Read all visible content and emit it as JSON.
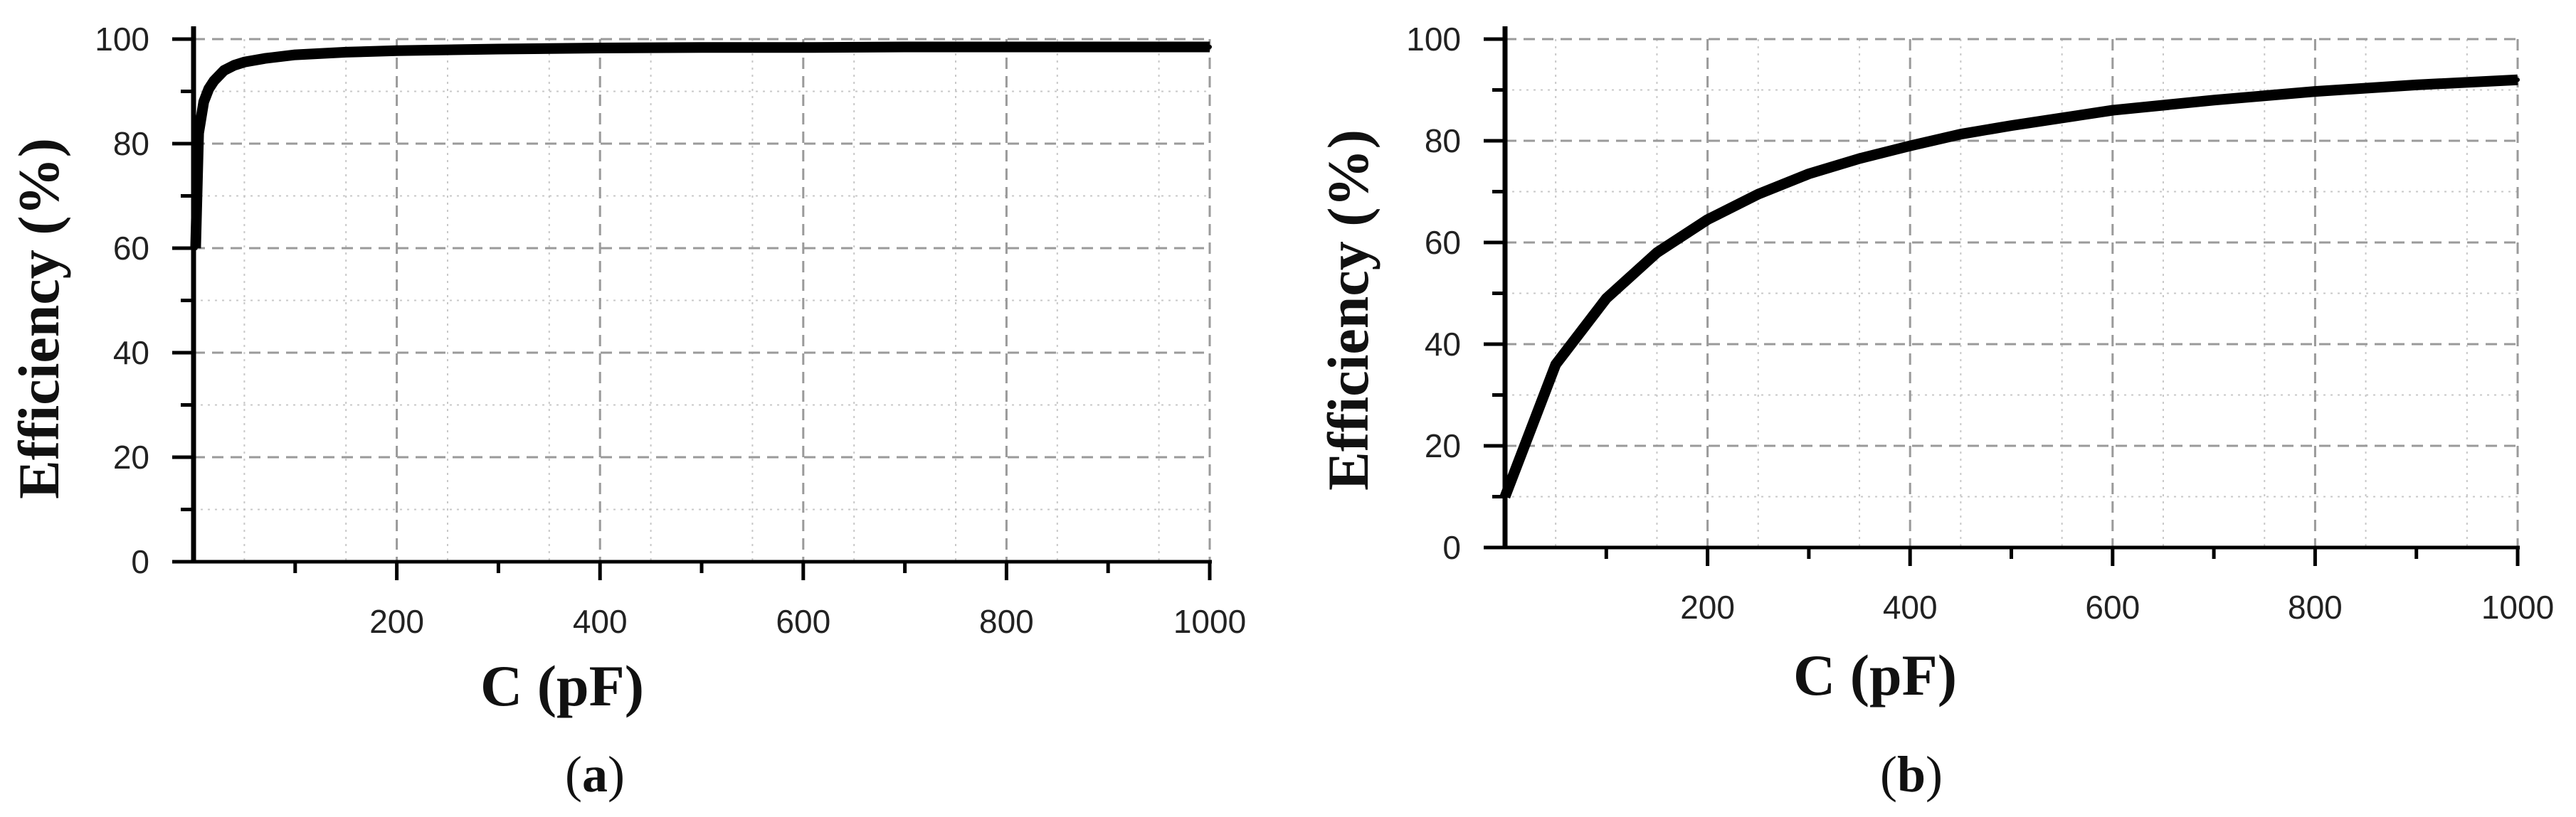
{
  "chart_data": [
    {
      "type": "line",
      "caption_open": "(",
      "caption_letter": "a",
      "caption_close": ")",
      "xlabel": "C (pF)",
      "ylabel": "Efficiency (%)",
      "xlim": [
        0,
        1000
      ],
      "ylim": [
        0,
        100
      ],
      "x_ticks": [
        200,
        400,
        600,
        800,
        1000
      ],
      "y_ticks": [
        0,
        20,
        40,
        60,
        80,
        100
      ],
      "grid": true,
      "color": "#000000",
      "series": [
        {
          "x": [
            2,
            5,
            10,
            15,
            20,
            30,
            40,
            50,
            70,
            100,
            150,
            200,
            300,
            400,
            500,
            600,
            700,
            800,
            900,
            1000
          ],
          "y": [
            60,
            82,
            88,
            90.5,
            92,
            94,
            95,
            95.6,
            96.3,
            97,
            97.5,
            97.8,
            98.1,
            98.3,
            98.4,
            98.4,
            98.5,
            98.5,
            98.5,
            98.5
          ]
        }
      ]
    },
    {
      "type": "line",
      "caption_open": "(",
      "caption_letter": "b",
      "caption_close": ")",
      "xlabel": "C (pF)",
      "ylabel": "Efficiency (%)",
      "xlim": [
        0,
        1000
      ],
      "ylim": [
        0,
        100
      ],
      "x_ticks": [
        200,
        400,
        600,
        800,
        1000
      ],
      "y_ticks": [
        0,
        20,
        40,
        60,
        80,
        100
      ],
      "grid": true,
      "color": "#000000",
      "series": [
        {
          "x": [
            0,
            50,
            100,
            150,
            200,
            250,
            300,
            350,
            400,
            450,
            500,
            600,
            700,
            800,
            900,
            1000
          ],
          "y": [
            10,
            36,
            49,
            58,
            64.5,
            69.5,
            73.5,
            76.5,
            79,
            81.3,
            83,
            86,
            88,
            89.7,
            91,
            92
          ]
        }
      ]
    }
  ]
}
